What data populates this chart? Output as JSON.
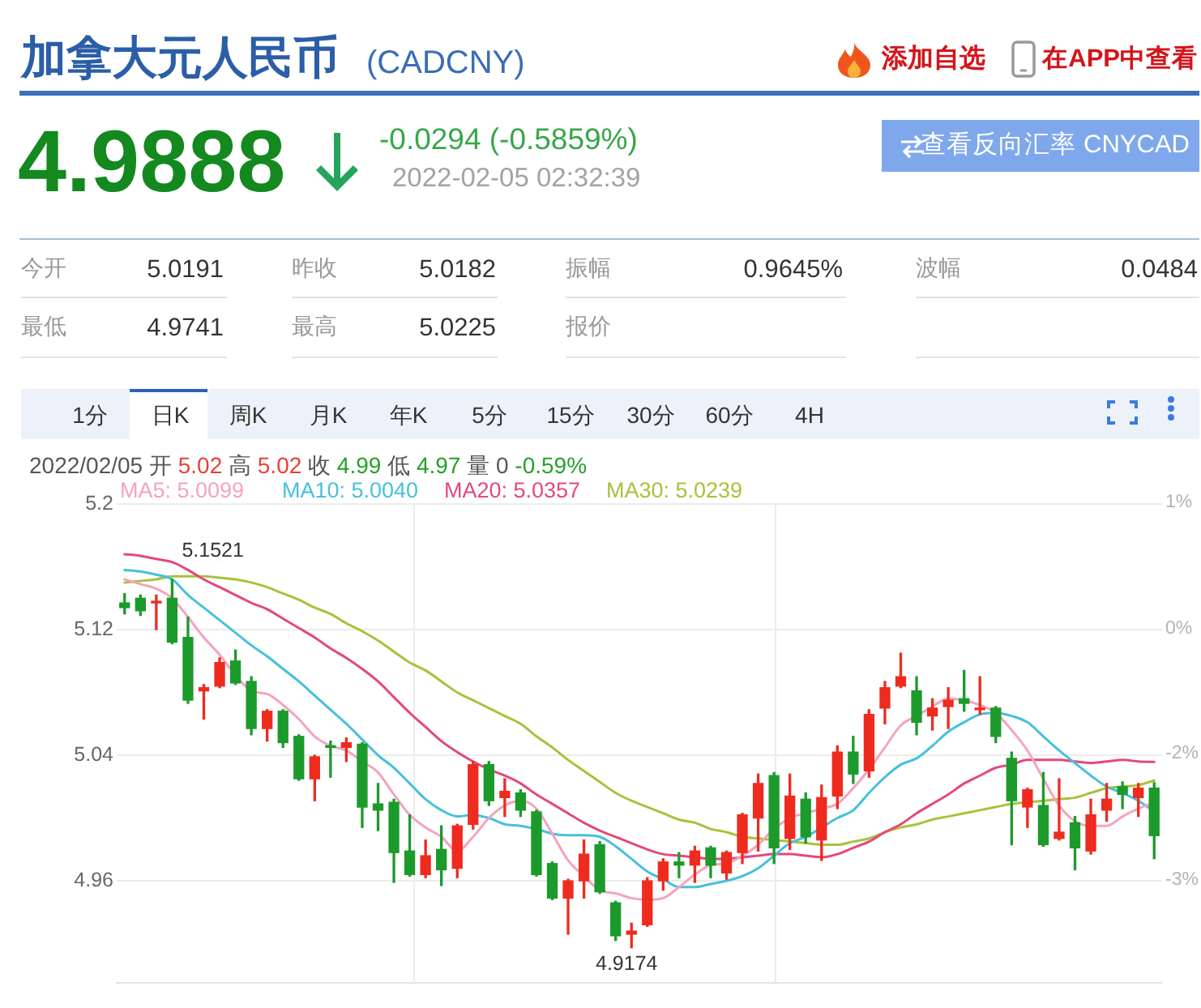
{
  "chart_data": {
    "type": "candlestick",
    "title": "加拿大元人民币",
    "subtitle": "(CADCNY)",
    "annotations": [
      "添加自选",
      "在APP中查看",
      "4.9888",
      "-0.0294 (-0.5859%)",
      "2022-02-05 02:32:39",
      "查看反向汇率 CNYCAD",
      "今开",
      "5.0191",
      "昨收",
      "5.0182",
      "振幅",
      "0.9645%",
      "波幅",
      "0.0484",
      "最低",
      "4.9741",
      "最高",
      "5.0225",
      "报价",
      "1分",
      "日K",
      "周K",
      "月K",
      "年K",
      "5分",
      "15分",
      "30分",
      "60分",
      "4H",
      "2022/02/05",
      "开",
      "5.02",
      "高",
      "5.02",
      "收",
      "4.99",
      "低",
      "4.97",
      "量",
      "0",
      "-0.59%",
      "1%",
      "0%",
      "-2%",
      "-3%",
      {
        "text": "5.1521",
        "y": 5.1521
      },
      {
        "text": "4.9174",
        "y": 4.9174
      }
    ],
    "categories": [
      null,
      null,
      null,
      null,
      null,
      null,
      null,
      null,
      null,
      null,
      null,
      null,
      null,
      null,
      null,
      null,
      null,
      null,
      null,
      null,
      null,
      null,
      null,
      null,
      null,
      null,
      null,
      null,
      null,
      null,
      null,
      null,
      null,
      null,
      null,
      null,
      null,
      null,
      null,
      null,
      null,
      null,
      null,
      null,
      null,
      null,
      null,
      null,
      null,
      null,
      null,
      null,
      null,
      null,
      null,
      null,
      null,
      null,
      null,
      null,
      null,
      null,
      null,
      null,
      null,
      null
    ],
    "ohlc": [
      [
        5.137,
        5.143,
        5.13,
        5.134
      ],
      [
        5.14,
        5.142,
        5.129,
        5.132
      ],
      [
        5.137,
        5.142,
        5.12,
        5.138
      ],
      [
        5.14,
        5.1521,
        5.111,
        5.112
      ],
      [
        5.115,
        5.128,
        5.073,
        5.075
      ],
      [
        5.081,
        5.085,
        5.063,
        5.083
      ],
      [
        5.084,
        5.102,
        5.083,
        5.099
      ],
      [
        5.1,
        5.107,
        5.085,
        5.086
      ],
      [
        5.087,
        5.09,
        5.053,
        5.057
      ],
      [
        5.057,
        5.069,
        5.049,
        5.068
      ],
      [
        5.068,
        5.069,
        5.045,
        5.048
      ],
      [
        5.052,
        5.053,
        5.024,
        5.025
      ],
      [
        5.025,
        5.04,
        5.011,
        5.039
      ],
      [
        5.046,
        5.049,
        5.026,
        5.045
      ],
      [
        5.045,
        5.051,
        5.036,
        5.048
      ],
      [
        5.047,
        5.048,
        4.994,
        5.007
      ],
      [
        5.009,
        5.022,
        4.992,
        5.005
      ],
      [
        5.01,
        5.012,
        4.959,
        4.978
      ],
      [
        4.979,
        5.002,
        4.963,
        4.964
      ],
      [
        4.964,
        4.986,
        4.962,
        4.976
      ],
      [
        4.98,
        4.995,
        4.957,
        4.967
      ],
      [
        4.968,
        4.996,
        4.962,
        4.995
      ],
      [
        4.996,
        5.036,
        4.993,
        5.034
      ],
      [
        5.034,
        5.036,
        5.008,
        5.011
      ],
      [
        5.013,
        5.025,
        5.001,
        5.017
      ],
      [
        5.016,
        5.018,
        5.001,
        5.005
      ],
      [
        5.004,
        5.005,
        4.963,
        4.964
      ],
      [
        4.971,
        4.972,
        4.948,
        4.949
      ],
      [
        4.949,
        4.961,
        4.926,
        4.96
      ],
      [
        4.96,
        4.986,
        4.949,
        4.977
      ],
      [
        4.983,
        4.985,
        4.952,
        4.953
      ],
      [
        4.946,
        4.947,
        4.922,
        4.925
      ],
      [
        4.926,
        4.933,
        4.9174,
        4.928
      ],
      [
        4.932,
        4.962,
        4.931,
        4.96
      ],
      [
        4.96,
        4.974,
        4.954,
        4.972
      ],
      [
        4.972,
        4.978,
        4.962,
        4.97
      ],
      [
        4.97,
        4.982,
        4.959,
        4.979
      ],
      [
        4.981,
        4.982,
        4.962,
        4.97
      ],
      [
        4.965,
        4.979,
        4.961,
        4.978
      ],
      [
        4.978,
        5.003,
        4.971,
        5.002
      ],
      [
        5.0,
        5.028,
        4.979,
        5.022
      ],
      [
        5.027,
        5.029,
        4.971,
        4.981
      ],
      [
        4.987,
        5.028,
        4.98,
        5.014
      ],
      [
        5.012,
        5.016,
        4.984,
        4.988
      ],
      [
        4.986,
        5.021,
        4.973,
        5.013
      ],
      [
        5.014,
        5.046,
        5.006,
        5.042
      ],
      [
        5.042,
        5.052,
        5.022,
        5.028
      ],
      [
        5.03,
        5.069,
        5.026,
        5.066
      ],
      [
        5.07,
        5.087,
        5.06,
        5.083
      ],
      [
        5.084,
        5.105,
        5.083,
        5.09
      ],
      [
        5.081,
        5.09,
        5.053,
        5.061
      ],
      [
        5.065,
        5.076,
        5.056,
        5.07
      ],
      [
        5.071,
        5.083,
        5.057,
        5.075
      ],
      [
        5.076,
        5.094,
        5.068,
        5.073
      ],
      [
        5.069,
        5.09,
        5.066,
        5.07
      ],
      [
        5.07,
        5.071,
        5.048,
        5.052
      ],
      [
        5.038,
        5.042,
        4.983,
        5.011
      ],
      [
        5.007,
        5.019,
        4.994,
        5.018
      ],
      [
        5.008,
        5.029,
        4.982,
        4.983
      ],
      [
        4.987,
        5.025,
        4.986,
        4.991
      ],
      [
        4.997,
        5.001,
        4.967,
        4.981
      ],
      [
        4.979,
        5.012,
        4.977,
        5.002
      ],
      [
        5.005,
        5.022,
        4.998,
        5.012
      ],
      [
        5.02,
        5.023,
        5.006,
        5.015
      ],
      [
        5.013,
        5.022,
        5.001,
        5.019
      ],
      [
        5.0191,
        5.0225,
        4.9741,
        4.9888
      ]
    ],
    "colors": [
      "#1c9a2b",
      "#1c9a2b",
      "#ee2b1f",
      "#1c9a2b",
      "#1c9a2b",
      "#ee2b1f",
      "#ee2b1f",
      "#1c9a2b",
      "#1c9a2b",
      "#ee2b1f",
      "#1c9a2b",
      "#1c9a2b",
      "#ee2b1f",
      "#1c9a2b",
      "#ee2b1f",
      "#1c9a2b",
      "#1c9a2b",
      "#1c9a2b",
      "#1c9a2b",
      "#ee2b1f",
      "#1c9a2b",
      "#ee2b1f",
      "#ee2b1f",
      "#1c9a2b",
      "#ee2b1f",
      "#1c9a2b",
      "#1c9a2b",
      "#1c9a2b",
      "#ee2b1f",
      "#ee2b1f",
      "#1c9a2b",
      "#1c9a2b",
      "#ee2b1f",
      "#ee2b1f",
      "#ee2b1f",
      "#1c9a2b",
      "#ee2b1f",
      "#1c9a2b",
      "#ee2b1f",
      "#ee2b1f",
      "#ee2b1f",
      "#1c9a2b",
      "#ee2b1f",
      "#1c9a2b",
      "#ee2b1f",
      "#ee2b1f",
      "#1c9a2b",
      "#ee2b1f",
      "#ee2b1f",
      "#ee2b1f",
      "#1c9a2b",
      "#ee2b1f",
      "#ee2b1f",
      "#1c9a2b",
      "#ee2b1f",
      "#1c9a2b",
      "#1c9a2b",
      "#ee2b1f",
      "#1c9a2b",
      "#ee2b1f",
      "#1c9a2b",
      "#ee2b1f",
      "#ee2b1f",
      "#1c9a2b",
      "#ee2b1f",
      "#1c9a2b"
    ],
    "series": [
      {
        "type": "line",
        "name": "MA5: 5.0099",
        "color": "#f5a3bf",
        "values": [
          5.152,
          5.149,
          5.146,
          5.14,
          5.128,
          5.115,
          5.104,
          5.091,
          5.081,
          5.079,
          5.072,
          5.063,
          5.052,
          5.046,
          5.043,
          5.036,
          5.029,
          5.015,
          5.002,
          4.994,
          4.988,
          4.979,
          4.988,
          5.0,
          5.008,
          5.011,
          5.006,
          4.99,
          4.973,
          4.963,
          4.954,
          4.952,
          4.949,
          4.948,
          4.949,
          4.956,
          4.964,
          4.97,
          4.971,
          4.976,
          4.983,
          4.993,
          5.0,
          5.003,
          5.006,
          5.009,
          5.019,
          5.031,
          5.045,
          5.059,
          5.065,
          5.071,
          5.076,
          5.075,
          5.072,
          5.067,
          5.056,
          5.043,
          5.025,
          5.008,
          4.998,
          4.995,
          4.995,
          5.001,
          5.006,
          5.0099
        ]
      },
      {
        "type": "line",
        "name": "MA10: 5.0040",
        "color": "#45c1dc",
        "values": [
          5.158,
          5.157,
          5.155,
          5.152,
          5.142,
          5.134,
          5.126,
          5.118,
          5.11,
          5.103,
          5.095,
          5.087,
          5.078,
          5.069,
          5.06,
          5.05,
          5.04,
          5.032,
          5.022,
          5.012,
          5.005,
          5.001,
          5.002,
          5.0,
          4.996,
          4.995,
          4.993,
          4.99,
          4.989,
          4.989,
          4.988,
          4.982,
          4.974,
          4.966,
          4.961,
          4.956,
          4.956,
          4.958,
          4.96,
          4.963,
          4.968,
          4.976,
          4.984,
          4.988,
          4.994,
          5.0,
          5.005,
          5.016,
          5.026,
          5.034,
          5.038,
          5.046,
          5.055,
          5.061,
          5.066,
          5.067,
          5.065,
          5.061,
          5.052,
          5.043,
          5.035,
          5.027,
          5.02,
          5.016,
          5.011,
          5.004
        ]
      },
      {
        "type": "line",
        "name": "MA20: 5.0357",
        "color": "#e4487c",
        "values": [
          5.168,
          5.167,
          5.165,
          5.163,
          5.158,
          5.152,
          5.147,
          5.142,
          5.137,
          5.133,
          5.127,
          5.121,
          5.115,
          5.108,
          5.102,
          5.095,
          5.087,
          5.077,
          5.067,
          5.058,
          5.049,
          5.042,
          5.036,
          5.031,
          5.027,
          5.022,
          5.015,
          5.009,
          5.003,
          4.997,
          4.992,
          4.988,
          4.984,
          4.98,
          4.977,
          4.976,
          4.975,
          4.974,
          4.974,
          4.975,
          4.976,
          4.977,
          4.977,
          4.976,
          4.975,
          4.977,
          4.981,
          4.985,
          4.991,
          4.996,
          5.003,
          5.009,
          5.015,
          5.022,
          5.027,
          5.032,
          5.034,
          5.037,
          5.037,
          5.037,
          5.036,
          5.035,
          5.036,
          5.037,
          5.036,
          5.0357
        ]
      },
      {
        "type": "line",
        "name": "MA30: 5.0239",
        "color": "#a8c23a",
        "values": [
          5.15,
          5.151,
          5.152,
          5.154,
          5.154,
          5.154,
          5.153,
          5.152,
          5.15,
          5.147,
          5.143,
          5.139,
          5.134,
          5.13,
          5.124,
          5.119,
          5.113,
          5.106,
          5.099,
          5.094,
          5.087,
          5.08,
          5.075,
          5.07,
          5.065,
          5.06,
          5.052,
          5.045,
          5.037,
          5.03,
          5.023,
          5.016,
          5.011,
          5.007,
          5.003,
          4.999,
          4.997,
          4.993,
          4.991,
          4.988,
          4.987,
          4.986,
          4.985,
          4.984,
          4.983,
          4.983,
          4.985,
          4.987,
          4.991,
          4.994,
          4.996,
          4.999,
          5.001,
          5.003,
          5.005,
          5.007,
          5.009,
          5.01,
          5.011,
          5.012,
          5.013,
          5.016,
          5.019,
          5.02,
          5.021,
          5.0239
        ]
      }
    ],
    "ylim": [
      4.895,
      5.2
    ],
    "yticks": [
      5.2,
      5.12,
      5.04,
      4.96
    ],
    "grid": "y",
    "legend": "top left",
    "marker": "none"
  }
}
